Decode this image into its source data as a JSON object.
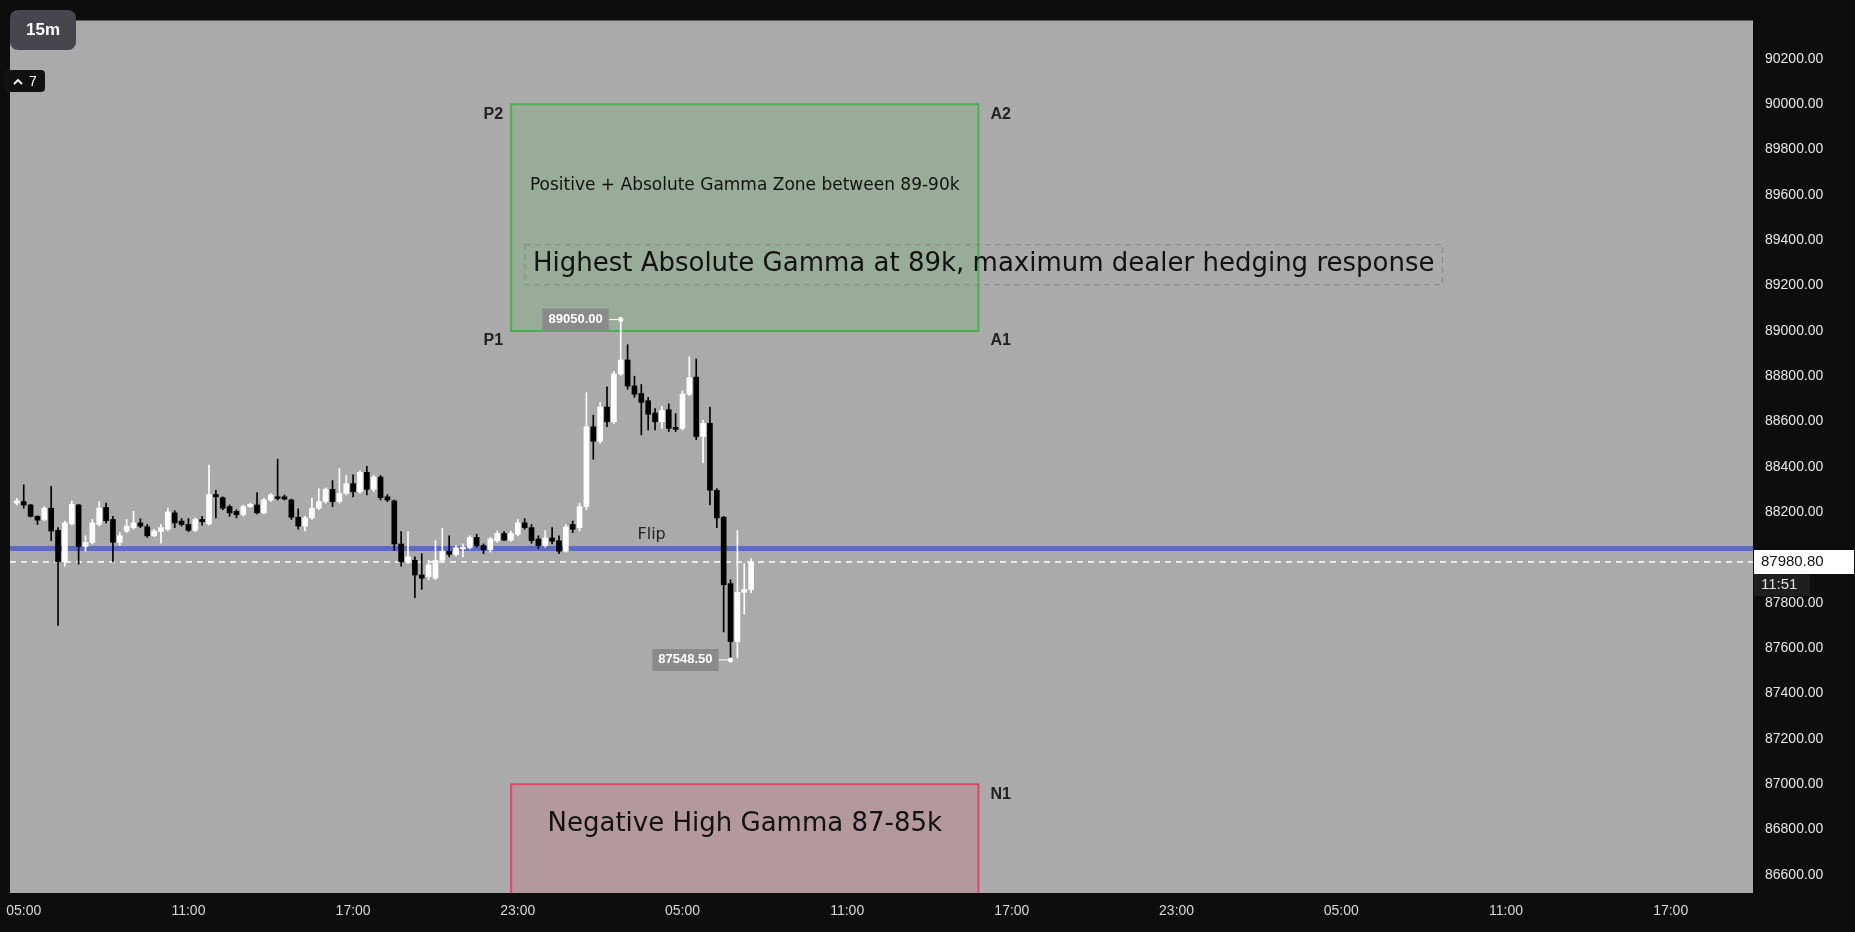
{
  "chart_data": {
    "type": "candlestick",
    "title": "15m",
    "categories": [
      null,
      null,
      "05:00",
      null,
      null,
      null,
      null,
      null,
      null,
      null,
      null,
      null,
      null,
      null,
      null,
      null,
      null,
      null,
      null,
      null,
      null,
      null,
      null,
      null,
      null,
      null,
      "11:00",
      null,
      null,
      null,
      null,
      null,
      null,
      null,
      null,
      null,
      null,
      null,
      null,
      null,
      null,
      null,
      null,
      null,
      null,
      null,
      null,
      null,
      null,
      null,
      "17:00",
      null,
      null,
      null,
      null,
      null,
      null,
      null,
      null,
      null,
      null,
      null,
      null,
      null,
      null,
      null,
      null,
      null,
      null,
      null,
      null,
      null,
      null,
      null,
      "23:00",
      null,
      null,
      null,
      null,
      null,
      null,
      null,
      null,
      null,
      null,
      null,
      null,
      null,
      null,
      null,
      null,
      null,
      null,
      null,
      null,
      null,
      null,
      null,
      "05:00",
      null,
      null,
      null,
      null,
      null,
      null,
      null,
      null,
      null,
      null,
      null,
      null,
      null,
      null,
      null,
      null,
      null,
      null,
      null,
      null,
      null,
      null,
      null,
      "11:00",
      null,
      null,
      null,
      null,
      null,
      null,
      null,
      null,
      null,
      null,
      null,
      null,
      null,
      null,
      null,
      null,
      null,
      null,
      null,
      null,
      null,
      null,
      null,
      "17:00",
      null,
      null,
      null,
      null,
      null,
      null,
      null,
      null,
      null,
      null,
      null,
      null,
      null,
      null,
      null,
      null,
      null,
      null,
      null,
      null,
      null,
      null,
      null,
      "23:00",
      null,
      null,
      null,
      null,
      null,
      null,
      null,
      null,
      null,
      null,
      null,
      null,
      null,
      null,
      null,
      null,
      null,
      null,
      null,
      null,
      null,
      null,
      null,
      "05:00",
      null,
      null,
      null,
      null,
      null,
      null,
      null,
      null,
      null,
      null,
      null,
      null,
      null,
      null,
      null,
      null,
      null,
      null,
      null,
      null,
      null,
      null,
      null,
      "11:00",
      null,
      null,
      null,
      null,
      null,
      null,
      null,
      null,
      null,
      null,
      null,
      null,
      null,
      null,
      null,
      null,
      null,
      null,
      null,
      null,
      null,
      null,
      null,
      "17:00",
      null,
      null,
      null,
      null,
      null,
      null,
      null,
      null,
      null,
      null,
      null,
      null
    ],
    "ohlc": [
      null,
      [
        88240,
        88261,
        88232,
        88250
      ],
      [
        88247,
        88321,
        88218,
        88232
      ],
      [
        88232,
        88235,
        88179,
        88182
      ],
      [
        88182,
        88185,
        88146,
        88165
      ],
      [
        88168,
        88225,
        88163,
        88218
      ],
      [
        88218,
        88314,
        88075,
        88117
      ],
      [
        88120,
        88132,
        87701,
        87981
      ],
      [
        87981,
        88161,
        87962,
        88153
      ],
      [
        88149,
        88250,
        88143,
        88235
      ],
      [
        88232,
        88235,
        87971,
        88049
      ],
      [
        88049,
        88096,
        88028,
        88067
      ],
      [
        88067,
        88168,
        88060,
        88153
      ],
      [
        88146,
        88247,
        88139,
        88218
      ],
      [
        88221,
        88240,
        88153,
        88163
      ],
      [
        88168,
        88182,
        87981,
        88067
      ],
      [
        88067,
        88110,
        88053,
        88096
      ],
      [
        88117,
        88168,
        88110,
        88139
      ],
      [
        88132,
        88204,
        88125,
        88153
      ],
      [
        88153,
        88171,
        88132,
        88139
      ],
      [
        88136,
        88146,
        88089,
        88096
      ],
      [
        88096,
        88125,
        88092,
        88117
      ],
      [
        88115,
        88146,
        88063,
        88132
      ],
      [
        88125,
        88218,
        88117,
        88201
      ],
      [
        88197,
        88207,
        88132,
        88153
      ],
      [
        88161,
        88172,
        88139,
        88146
      ],
      [
        88146,
        88172,
        88115,
        88120
      ],
      [
        88120,
        88175,
        88115,
        88168
      ],
      [
        88168,
        88182,
        88143,
        88158
      ],
      [
        88149,
        88408,
        88143,
        88278
      ],
      [
        88278,
        88297,
        88175,
        88268
      ],
      [
        88264,
        88268,
        88211,
        88218
      ],
      [
        88225,
        88232,
        88182,
        88197
      ],
      [
        88204,
        88211,
        88175,
        88189
      ],
      [
        88189,
        88232,
        88182,
        88225
      ],
      [
        88225,
        88240,
        88220,
        88235
      ],
      [
        88232,
        88287,
        88193,
        88197
      ],
      [
        88197,
        88261,
        88193,
        88254
      ],
      [
        88254,
        88283,
        88247,
        88276
      ],
      [
        88268,
        88434,
        88254,
        88261
      ],
      [
        88268,
        88276,
        88254,
        88258
      ],
      [
        88254,
        88258,
        88168,
        88178
      ],
      [
        88178,
        88215,
        88125,
        88139
      ],
      [
        88139,
        88182,
        88117,
        88175
      ],
      [
        88175,
        88261,
        88168,
        88218
      ],
      [
        88218,
        88304,
        88211,
        88247
      ],
      [
        88247,
        88307,
        88240,
        88301
      ],
      [
        88301,
        88340,
        88225,
        88247
      ],
      [
        88247,
        88393,
        88240,
        88283
      ],
      [
        88283,
        88362,
        88276,
        88326
      ],
      [
        88326,
        88365,
        88268,
        88290
      ],
      [
        88290,
        88383,
        88283,
        88376
      ],
      [
        88376,
        88402,
        88276,
        88301
      ],
      [
        88301,
        88362,
        88290,
        88355
      ],
      [
        88355,
        88362,
        88254,
        88264
      ],
      [
        88268,
        88278,
        88247,
        88254
      ],
      [
        88250,
        88254,
        88031,
        88060
      ],
      [
        88060,
        88115,
        87962,
        87981
      ],
      [
        87981,
        88115,
        87974,
        88003
      ],
      [
        87988,
        88003,
        87823,
        87923
      ],
      [
        87923,
        88017,
        87859,
        87909
      ],
      [
        87916,
        87988,
        87902,
        87967
      ],
      [
        87909,
        88075,
        87902,
        87988
      ],
      [
        87988,
        88129,
        87981,
        88028
      ],
      [
        88028,
        88096,
        88003,
        88014
      ],
      [
        88014,
        88053,
        88006,
        88043
      ],
      [
        88038,
        88060,
        88003,
        88046
      ],
      [
        88043,
        88096,
        88038,
        88089
      ],
      [
        88089,
        88103,
        88046,
        88053
      ],
      [
        88053,
        88060,
        88017,
        88034
      ],
      [
        88034,
        88089,
        88024,
        88082
      ],
      [
        88075,
        88117,
        88067,
        88106
      ],
      [
        88106,
        88115,
        88075,
        88077
      ],
      [
        88077,
        88117,
        88072,
        88106
      ],
      [
        88103,
        88168,
        88096,
        88153
      ],
      [
        88153,
        88172,
        88125,
        88132
      ],
      [
        88132,
        88146,
        88063,
        88075
      ],
      [
        88082,
        88096,
        88038,
        88053
      ],
      [
        88053,
        88118,
        88046,
        88086
      ],
      [
        88086,
        88132,
        88060,
        88072
      ],
      [
        88074,
        88096,
        88017,
        88028
      ],
      [
        88028,
        88146,
        88024,
        88135
      ],
      [
        88146,
        88161,
        88110,
        88125
      ],
      [
        88132,
        88240,
        88118,
        88225
      ],
      [
        88225,
        88728,
        88211,
        88577
      ],
      [
        88577,
        88628,
        88434,
        88513
      ],
      [
        88513,
        88685,
        88505,
        88664
      ],
      [
        88664,
        88753,
        88577,
        88599
      ],
      [
        88599,
        88822,
        88592,
        88810
      ],
      [
        88810,
        89050,
        88804,
        88872
      ],
      [
        88872,
        88939,
        88743,
        88757
      ],
      [
        88757,
        88800,
        88707,
        88721
      ],
      [
        88724,
        88764,
        88541,
        88685
      ],
      [
        88692,
        88707,
        88563,
        88632
      ],
      [
        88638,
        88657,
        88563,
        88599
      ],
      [
        88599,
        88667,
        88570,
        88649
      ],
      [
        88652,
        88678,
        88556,
        88570
      ],
      [
        88574,
        88635,
        88556,
        88566
      ],
      [
        88570,
        88735,
        88563,
        88721
      ],
      [
        88721,
        88886,
        88714,
        88793
      ],
      [
        88796,
        88876,
        88520,
        88534
      ],
      [
        88534,
        88606,
        88419,
        88592
      ],
      [
        88592,
        88664,
        88232,
        88297
      ],
      [
        88297,
        88304,
        88132,
        88175
      ],
      [
        88178,
        88182,
        87672,
        87880
      ],
      [
        87885,
        87902,
        87548.5,
        87629
      ],
      [
        87629,
        88118,
        87557,
        87847
      ],
      [
        87847,
        87974,
        87751,
        87859
      ],
      [
        87859,
        87995,
        87845,
        87980.8
      ],
      null,
      null,
      null,
      null,
      null,
      null,
      null,
      null,
      null,
      null,
      null,
      null,
      null,
      null,
      null,
      null,
      null,
      null,
      null,
      null,
      null,
      null,
      null,
      null,
      null,
      null,
      null,
      null,
      null,
      null,
      null,
      null,
      null,
      null,
      null,
      null,
      null,
      null,
      null,
      null,
      null,
      null,
      null,
      null,
      null,
      null,
      null,
      null,
      null,
      null,
      null,
      null,
      null,
      null,
      null,
      null,
      null,
      null,
      null,
      null,
      null,
      null,
      null,
      null,
      null,
      null,
      null,
      null,
      null,
      null,
      null,
      null,
      null,
      null,
      null,
      null,
      null,
      null,
      null,
      null,
      null,
      null,
      null,
      null,
      null,
      null,
      null,
      null,
      null,
      null,
      null,
      null,
      null,
      null,
      null,
      null,
      null,
      null,
      null,
      null,
      null,
      null,
      null,
      null,
      null,
      null,
      null,
      null,
      null,
      null,
      null,
      null,
      null,
      null,
      null,
      null,
      null,
      null,
      null,
      null,
      null,
      null,
      null,
      null,
      null,
      null,
      null,
      null,
      null,
      null,
      null,
      null,
      null,
      null,
      null,
      null,
      null,
      null,
      null,
      null,
      null,
      null,
      null,
      null,
      null,
      null
    ],
    "ylim": [
      86520,
      90370
    ],
    "yticks": [
      {
        "value": 86600,
        "label": "86600.00"
      },
      {
        "value": 86800,
        "label": "86800.00"
      },
      {
        "value": 87000,
        "label": "87000.00"
      },
      {
        "value": 87200,
        "label": "87200.00"
      },
      {
        "value": 87400,
        "label": "87400.00"
      },
      {
        "value": 87600,
        "label": "87600.00"
      },
      {
        "value": 87800,
        "label": "87800.00"
      },
      {
        "value": 88200,
        "label": "88200.00"
      },
      {
        "value": 88400,
        "label": "88400.00"
      },
      {
        "value": 88600,
        "label": "88600.00"
      },
      {
        "value": 88800,
        "label": "88800.00"
      },
      {
        "value": 89000,
        "label": "89000.00"
      },
      {
        "value": 89200,
        "label": "89200.00"
      },
      {
        "value": 89400,
        "label": "89400.00"
      },
      {
        "value": 89600,
        "label": "89600.00"
      },
      {
        "value": 89800,
        "label": "89800.00"
      },
      {
        "value": 90000,
        "label": "90000.00"
      },
      {
        "value": 90200,
        "label": "90200.00"
      }
    ],
    "bands": [
      {
        "axis": "y",
        "from": 89000,
        "to": 90000,
        "label": "Positive + Absolute Gamma Zone between 89-90k",
        "color": "#4caf50"
      },
      {
        "axis": "y",
        "from": 85000,
        "to": 87000,
        "label": "Negative High Gamma 87-85k",
        "color": "#e0476a"
      }
    ],
    "ref_lines": [
      {
        "axis": "y",
        "value": 88040,
        "label": "Flip",
        "color": "#5c6bc0"
      },
      {
        "axis": "y",
        "value": 87980.8,
        "label": "87980.80",
        "color": "#ffffff",
        "line_style": "dashed"
      }
    ],
    "annotations": [
      "7",
      "11:51",
      "Highest Absolute Gamma at 89k, maximum dealer hedging response",
      "P2",
      "P1",
      "A2",
      "A1",
      "N1",
      "89050.00",
      "87548.50"
    ],
    "grid": false,
    "legend": false
  }
}
